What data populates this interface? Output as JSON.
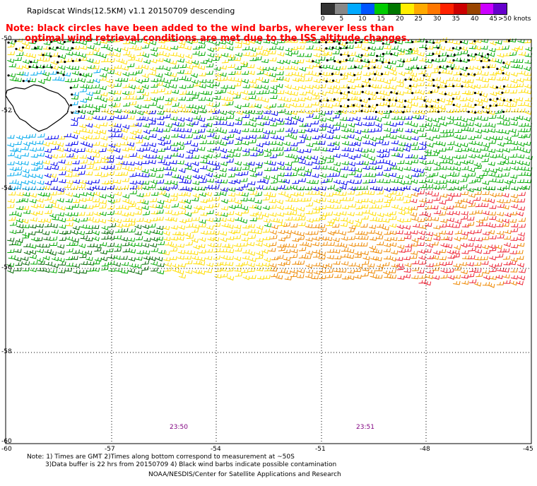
{
  "header": {
    "title": "Rapidscat Winds(12.5KM) v1.1 20150709 descending",
    "note_line1": "Note: black circles have been added to the wind barbs, wherever less than",
    "note_line2": "      optimal wind retrieval conditions are met due to the ISS altitude changes."
  },
  "legend": {
    "units": ">50 knots",
    "ticks": [
      "0",
      "5",
      "10",
      "15",
      "20",
      "25",
      "30",
      "35",
      "40",
      "45"
    ],
    "colors": [
      "#333333",
      "#888888",
      "#00aaff",
      "#0055ff",
      "#00cc00",
      "#007700",
      "#ffee00",
      "#ffaa00",
      "#ff7700",
      "#ff2200",
      "#cc0000",
      "#994400",
      "#cc00ff",
      "#6600cc"
    ]
  },
  "axes": {
    "y_labels": [
      "-50",
      "-52",
      "-54",
      "-56",
      "-58",
      "-60"
    ],
    "x_labels": [
      "-60",
      "-57",
      "-54",
      "-51",
      "-48",
      "-45"
    ]
  },
  "times": [
    "23:50",
    "23:51"
  ],
  "footer": {
    "line1": "Note: 1) Times are GMT 2)Times along bottom correspond to measurement at ~50S",
    "line2": "3)Data buffer is 22 hrs from 20150709 4) Black wind barbs indicate possible contamination",
    "line3": "NOAA/NESDIS/Center for Satellite Applications and Research"
  },
  "colors": {
    "note": "#ff0000",
    "time_text": "#800080",
    "barb_blue": "#0000ee",
    "barb_cyan": "#00aaee",
    "barb_green": "#00aa00",
    "barb_darkgreen": "#006600",
    "barb_yellow": "#ffdd00",
    "barb_orange": "#ee8800",
    "barb_red": "#ee2233"
  }
}
